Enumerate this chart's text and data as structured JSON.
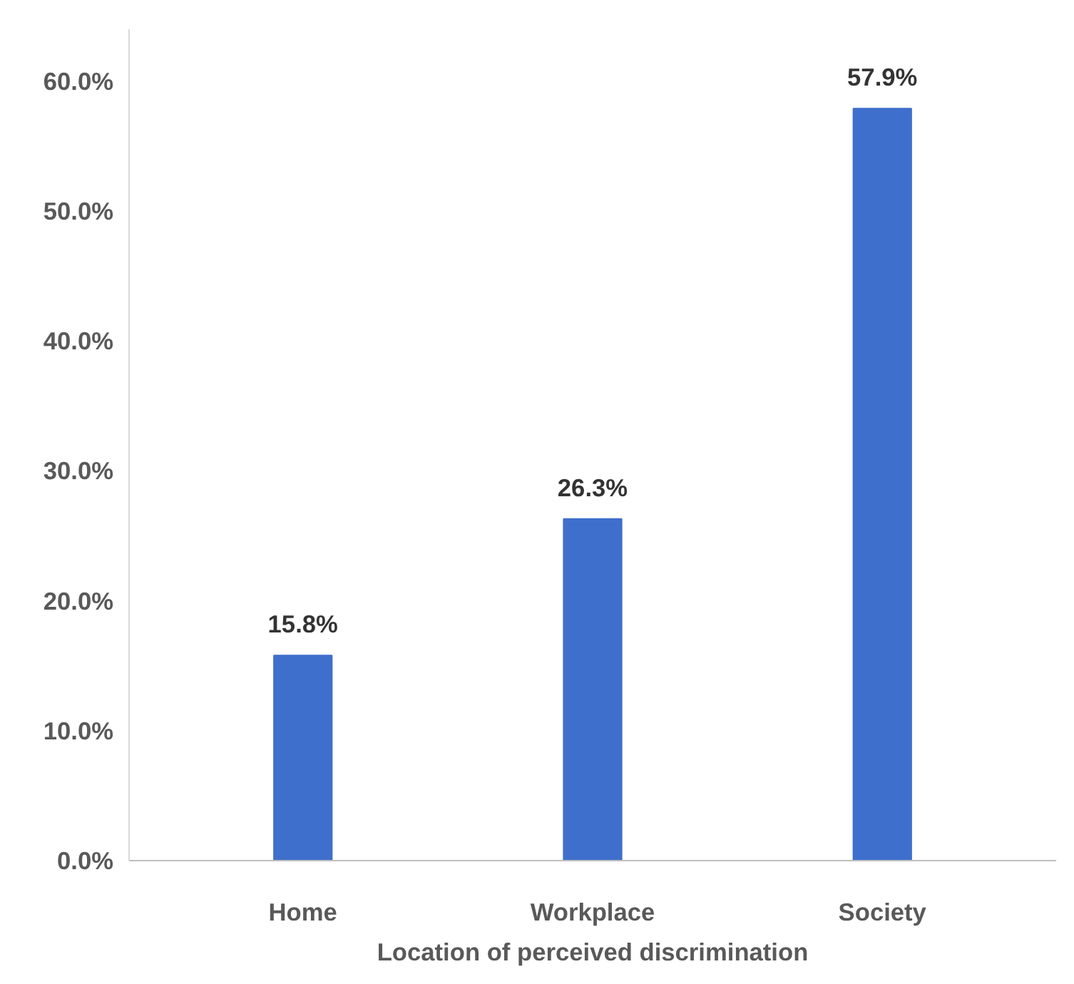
{
  "chart_data": {
    "type": "bar",
    "xlabel": "Location of perceived discrimination",
    "categories": [
      "Home",
      "Workplace",
      "Society"
    ],
    "values": [
      15.8,
      26.3,
      57.9
    ],
    "value_labels": [
      "15.8%",
      "26.3%",
      "57.9%"
    ],
    "color": "#3f6fcc",
    "ylim": [
      0,
      64
    ],
    "yticks": [
      {
        "value": 0,
        "label": "0.0%"
      },
      {
        "value": 10,
        "label": "10.0%"
      },
      {
        "value": 20,
        "label": "20.0%"
      },
      {
        "value": 30,
        "label": "30.0%"
      },
      {
        "value": 40,
        "label": "40.0%"
      },
      {
        "value": 50,
        "label": "50.0%"
      },
      {
        "value": 60,
        "label": "60.0%"
      }
    ],
    "grid": false
  }
}
